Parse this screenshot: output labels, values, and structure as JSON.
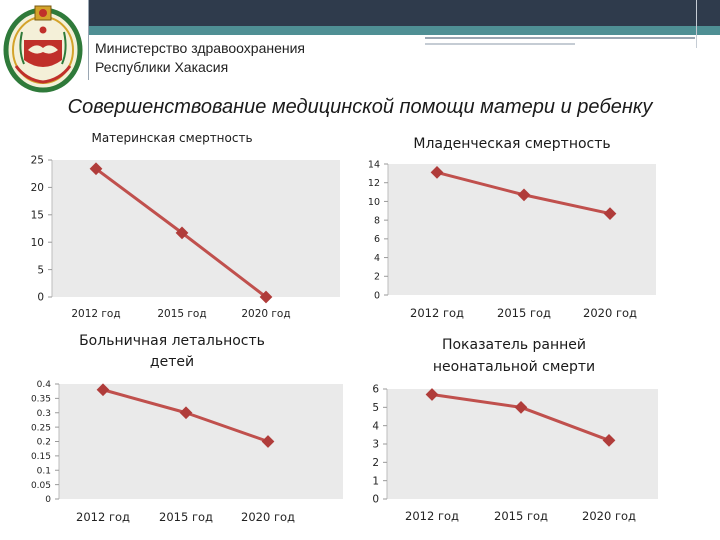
{
  "header": {
    "ministry_line1": "Министерство здравоохранения",
    "ministry_line2": "Республики Хакасия"
  },
  "slide_title": "Совершенствование медицинской помощи матери и ребенку",
  "colors": {
    "series": "#c0504d",
    "marker": "#b03c3a",
    "plot_bg": "#eaeaea",
    "grid": "#ffffff",
    "header_dark": "#2f3b4c",
    "header_teal": "#4f8f94"
  },
  "chart_data": [
    {
      "type": "line",
      "title": "Материнская смертность",
      "categories": [
        "2012 год",
        "2015 год",
        "2020 год"
      ],
      "series": [
        {
          "values": [
            23.4,
            11.7,
            0
          ]
        }
      ],
      "ylim": [
        0,
        25
      ],
      "yticks": [
        "0",
        "5",
        "10",
        "15",
        "20",
        "25"
      ],
      "grid": false,
      "legend": "none"
    },
    {
      "type": "line",
      "title": "Младенческая смертность",
      "categories": [
        "2012 год",
        "2015 год",
        "2020 год"
      ],
      "series": [
        {
          "values": [
            13.1,
            10.7,
            8.7
          ]
        }
      ],
      "ylim": [
        0,
        14
      ],
      "yticks": [
        "0",
        "2",
        "4",
        "6",
        "8",
        "10",
        "12",
        "14"
      ],
      "grid": false,
      "legend": "none"
    },
    {
      "type": "line",
      "title": "Больничная летальность детей",
      "title_lines": [
        "Больничная летальность",
        "детей"
      ],
      "categories": [
        "2012 год",
        "2015 год",
        "2020 год"
      ],
      "series": [
        {
          "values": [
            0.38,
            0.3,
            0.2
          ]
        }
      ],
      "ylim": [
        0,
        0.4
      ],
      "yticks": [
        "0",
        "0.05",
        "0.1",
        "0.15",
        "0.2",
        "0.25",
        "0.3",
        "0.35",
        "0.4"
      ],
      "grid": false,
      "legend": "none"
    },
    {
      "type": "line",
      "title": "Показатель ранней неонатальной смерти",
      "title_lines": [
        "Показатель ранней",
        "неонатальной смерти"
      ],
      "categories": [
        "2012 год",
        "2015 год",
        "2020 год"
      ],
      "series": [
        {
          "values": [
            5.7,
            5.0,
            3.2
          ]
        }
      ],
      "ylim": [
        0,
        6
      ],
      "yticks": [
        "0",
        "1",
        "2",
        "3",
        "4",
        "5",
        "6"
      ],
      "grid": false,
      "legend": "none"
    }
  ]
}
